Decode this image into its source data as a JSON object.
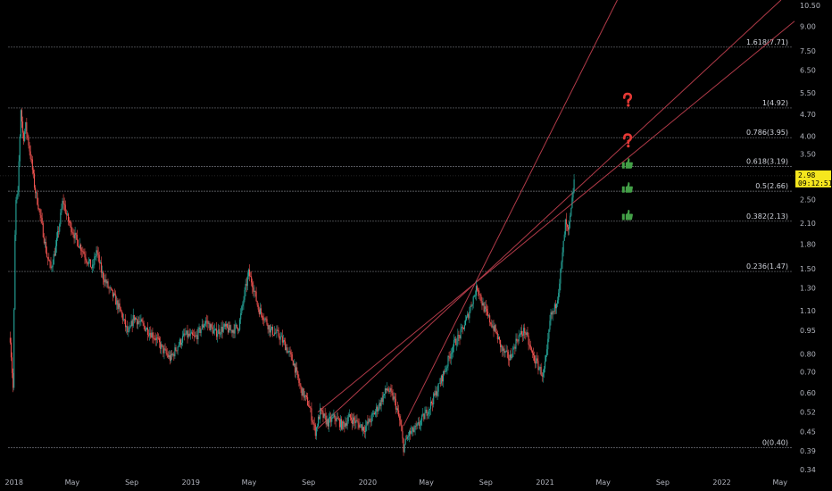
{
  "chart_data": {
    "type": "candlestick",
    "title": "",
    "xlabel": "",
    "ylabel": "",
    "scale": "log",
    "ylim": [
      0.34,
      10.5
    ],
    "x_range": [
      "2017-12-03",
      "2022-05-31"
    ],
    "grid": false,
    "y_ticks": [
      {
        "value": 10.5,
        "label": "10.50"
      },
      {
        "value": 9.0,
        "label": "9.00"
      },
      {
        "value": 7.5,
        "label": "7.50"
      },
      {
        "value": 6.5,
        "label": "6.50"
      },
      {
        "value": 5.5,
        "label": "5.50"
      },
      {
        "value": 4.7,
        "label": "4.70"
      },
      {
        "value": 4.0,
        "label": "4.00"
      },
      {
        "value": 3.5,
        "label": "3.50"
      },
      {
        "value": 2.5,
        "label": "2.50"
      },
      {
        "value": 2.1,
        "label": "2.10"
      },
      {
        "value": 1.8,
        "label": "1.80"
      },
      {
        "value": 1.5,
        "label": "1.50"
      },
      {
        "value": 1.3,
        "label": "1.30"
      },
      {
        "value": 1.1,
        "label": "1.10"
      },
      {
        "value": 0.95,
        "label": "0.95"
      },
      {
        "value": 0.8,
        "label": "0.80"
      },
      {
        "value": 0.7,
        "label": "0.70"
      },
      {
        "value": 0.6,
        "label": "0.60"
      },
      {
        "value": 0.52,
        "label": "0.52"
      },
      {
        "value": 0.45,
        "label": "0.45"
      },
      {
        "value": 0.39,
        "label": "0.39"
      },
      {
        "value": 0.34,
        "label": "0.34"
      }
    ],
    "x_ticks": [
      {
        "date": "2018-01-01",
        "label": "2018"
      },
      {
        "date": "2018-05-01",
        "label": "May"
      },
      {
        "date": "2018-09-01",
        "label": "Sep"
      },
      {
        "date": "2019-01-01",
        "label": "2019"
      },
      {
        "date": "2019-05-01",
        "label": "May"
      },
      {
        "date": "2019-09-01",
        "label": "Sep"
      },
      {
        "date": "2020-01-01",
        "label": "2020"
      },
      {
        "date": "2020-05-01",
        "label": "May"
      },
      {
        "date": "2020-09-01",
        "label": "Sep"
      },
      {
        "date": "2021-01-01",
        "label": "2021"
      },
      {
        "date": "2021-05-01",
        "label": "May"
      },
      {
        "date": "2021-09-01",
        "label": "Sep"
      },
      {
        "date": "2022-01-01",
        "label": "2022"
      },
      {
        "date": "2022-05-01",
        "label": "May"
      }
    ],
    "fib_levels": [
      {
        "ratio": "1.618",
        "price": 7.71,
        "label": "1.618(7.71)"
      },
      {
        "ratio": "1",
        "price": 4.92,
        "label": "1(4.92)"
      },
      {
        "ratio": "0.786",
        "price": 3.95,
        "label": "0.786(3.95)"
      },
      {
        "ratio": "0.618",
        "price": 3.19,
        "label": "0.618(3.19)"
      },
      {
        "ratio": "0.5",
        "price": 2.66,
        "label": "0.5(2.66)"
      },
      {
        "ratio": "0.382",
        "price": 2.13,
        "label": "0.382(2.13)"
      },
      {
        "ratio": "0.236",
        "price": 1.47,
        "label": "0.236(1.47)"
      },
      {
        "ratio": "0",
        "price": 0.4,
        "label": "0(0.40)"
      }
    ],
    "fib_start_date": "2017-12-20",
    "current_price": {
      "value": 2.98,
      "price_label": "2.98",
      "countdown_label": "09:12:51",
      "color": "#f5e61e"
    },
    "price_path": [
      [
        "2017-12-24",
        0.9
      ],
      [
        "2017-12-30",
        0.62
      ],
      [
        "2018-01-03",
        1.9
      ],
      [
        "2018-01-06",
        2.8
      ],
      [
        "2018-01-08",
        2.3
      ],
      [
        "2018-01-11",
        3.3
      ],
      [
        "2018-01-15",
        4.9
      ],
      [
        "2018-01-20",
        3.9
      ],
      [
        "2018-01-25",
        4.3
      ],
      [
        "2018-02-01",
        3.7
      ],
      [
        "2018-02-07",
        3.2
      ],
      [
        "2018-02-13",
        2.7
      ],
      [
        "2018-02-20",
        2.4
      ],
      [
        "2018-03-01",
        2.0
      ],
      [
        "2018-03-10",
        1.65
      ],
      [
        "2018-03-18",
        1.5
      ],
      [
        "2018-03-28",
        1.75
      ],
      [
        "2018-04-05",
        2.1
      ],
      [
        "2018-04-12",
        2.5
      ],
      [
        "2018-04-20",
        2.2
      ],
      [
        "2018-05-01",
        2.0
      ],
      [
        "2018-05-10",
        1.85
      ],
      [
        "2018-05-20",
        1.75
      ],
      [
        "2018-06-01",
        1.6
      ],
      [
        "2018-06-12",
        1.5
      ],
      [
        "2018-06-20",
        1.72
      ],
      [
        "2018-07-01",
        1.45
      ],
      [
        "2018-07-15",
        1.3
      ],
      [
        "2018-07-28",
        1.2
      ],
      [
        "2018-08-10",
        1.08
      ],
      [
        "2018-08-25",
        0.92
      ],
      [
        "2018-09-05",
        1.05
      ],
      [
        "2018-09-20",
        1.0
      ],
      [
        "2018-10-05",
        0.95
      ],
      [
        "2018-10-20",
        0.9
      ],
      [
        "2018-11-05",
        0.82
      ],
      [
        "2018-11-20",
        0.77
      ],
      [
        "2018-12-05",
        0.85
      ],
      [
        "2018-12-20",
        0.92
      ],
      [
        "2019-01-10",
        0.9
      ],
      [
        "2019-02-01",
        1.02
      ],
      [
        "2019-02-20",
        0.93
      ],
      [
        "2019-03-10",
        0.97
      ],
      [
        "2019-03-25",
        0.95
      ],
      [
        "2019-04-10",
        0.98
      ],
      [
        "2019-04-22",
        1.25
      ],
      [
        "2019-04-30",
        1.45
      ],
      [
        "2019-05-08",
        1.35
      ],
      [
        "2019-05-20",
        1.12
      ],
      [
        "2019-06-01",
        1.05
      ],
      [
        "2019-06-15",
        0.95
      ],
      [
        "2019-07-01",
        0.92
      ],
      [
        "2019-07-15",
        0.85
      ],
      [
        "2019-08-01",
        0.75
      ],
      [
        "2019-08-15",
        0.62
      ],
      [
        "2019-09-01",
        0.55
      ],
      [
        "2019-09-15",
        0.45
      ],
      [
        "2019-09-25",
        0.52
      ],
      [
        "2019-10-10",
        0.48
      ],
      [
        "2019-10-25",
        0.5
      ],
      [
        "2019-11-10",
        0.47
      ],
      [
        "2019-11-25",
        0.5
      ],
      [
        "2019-12-10",
        0.48
      ],
      [
        "2019-12-25",
        0.46
      ],
      [
        "2020-01-10",
        0.5
      ],
      [
        "2020-01-25",
        0.55
      ],
      [
        "2020-02-10",
        0.62
      ],
      [
        "2020-02-25",
        0.57
      ],
      [
        "2020-03-08",
        0.48
      ],
      [
        "2020-03-15",
        0.4
      ],
      [
        "2020-03-25",
        0.44
      ],
      [
        "2020-04-10",
        0.46
      ],
      [
        "2020-04-25",
        0.5
      ],
      [
        "2020-05-10",
        0.55
      ],
      [
        "2020-05-25",
        0.62
      ],
      [
        "2020-06-10",
        0.72
      ],
      [
        "2020-06-25",
        0.85
      ],
      [
        "2020-07-10",
        0.92
      ],
      [
        "2020-07-25",
        1.05
      ],
      [
        "2020-08-05",
        1.2
      ],
      [
        "2020-08-15",
        1.32
      ],
      [
        "2020-08-25",
        1.15
      ],
      [
        "2020-09-05",
        1.05
      ],
      [
        "2020-09-20",
        0.95
      ],
      [
        "2020-10-05",
        0.82
      ],
      [
        "2020-10-20",
        0.77
      ],
      [
        "2020-11-05",
        0.9
      ],
      [
        "2020-11-20",
        0.95
      ],
      [
        "2020-12-05",
        0.8
      ],
      [
        "2020-12-20",
        0.72
      ],
      [
        "2020-12-28",
        0.68
      ],
      [
        "2021-01-05",
        0.8
      ],
      [
        "2021-01-12",
        1.05
      ],
      [
        "2021-01-20",
        1.1
      ],
      [
        "2021-01-28",
        1.25
      ],
      [
        "2021-02-05",
        1.6
      ],
      [
        "2021-02-12",
        2.1
      ],
      [
        "2021-02-18",
        1.95
      ],
      [
        "2021-02-24",
        2.3
      ],
      [
        "2021-03-03",
        2.98
      ]
    ],
    "fan_lines": [
      {
        "from": [
          "2019-09-20",
          0.52
        ],
        "through": [
          "2020-08-10",
          1.35
        ]
      },
      {
        "from": [
          "2019-09-20",
          0.46
        ],
        "through": [
          "2020-08-10",
          1.35
        ]
      },
      {
        "from": [
          "2020-03-15",
          0.47
        ],
        "through": [
          "2020-08-10",
          1.35
        ]
      }
    ],
    "annotations": [
      {
        "type": "question",
        "color": "#e53935",
        "price": 5.2,
        "date": "2021-06-20"
      },
      {
        "type": "question",
        "color": "#e53935",
        "price": 3.85,
        "date": "2021-06-20"
      },
      {
        "type": "thumbs-up",
        "color": "#43a047",
        "price": 3.25,
        "date": "2021-06-20"
      },
      {
        "type": "thumbs-up",
        "color": "#43a047",
        "price": 2.72,
        "date": "2021-06-20"
      },
      {
        "type": "thumbs-up",
        "color": "#43a047",
        "price": 2.22,
        "date": "2021-06-20"
      }
    ],
    "colors": {
      "up": "#26a69a",
      "down": "#ef5350",
      "fan": "#b03a48",
      "fib": "#9598a1",
      "axis_text": "#b2b5be",
      "background": "#000000"
    }
  }
}
